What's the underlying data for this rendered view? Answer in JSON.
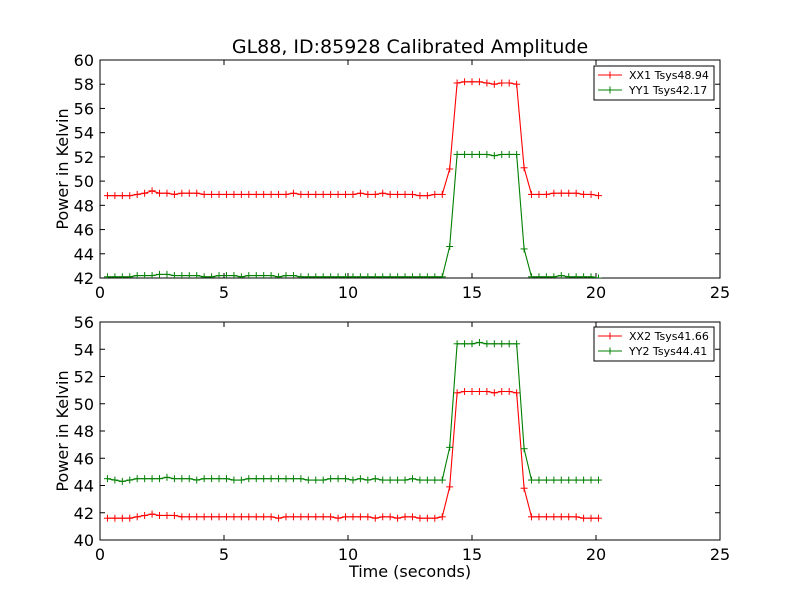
{
  "chart_data": [
    {
      "type": "line",
      "title": "GL88, ID:85928 Calibrated Amplitude",
      "xlabel": "",
      "ylabel": "Power in Kelvin",
      "xlim": [
        0,
        25
      ],
      "ylim": [
        42,
        60
      ],
      "xticks": [
        "0",
        "5",
        "10",
        "15",
        "20",
        "25"
      ],
      "yticks": [
        "42",
        "44",
        "46",
        "48",
        "50",
        "52",
        "54",
        "56",
        "58",
        "60"
      ],
      "legend_position": "top-right",
      "x": [
        0.3,
        0.6,
        0.9,
        1.2,
        1.5,
        1.8,
        2.1,
        2.4,
        2.7,
        3.0,
        3.3,
        3.6,
        3.9,
        4.2,
        4.5,
        4.8,
        5.1,
        5.4,
        5.7,
        6.0,
        6.3,
        6.6,
        6.9,
        7.2,
        7.5,
        7.8,
        8.1,
        8.4,
        8.7,
        9.0,
        9.3,
        9.6,
        9.9,
        10.2,
        10.5,
        10.8,
        11.1,
        11.4,
        11.7,
        12.0,
        12.3,
        12.6,
        12.9,
        13.2,
        13.5,
        13.8,
        14.1,
        14.4,
        14.7,
        15.0,
        15.3,
        15.6,
        15.9,
        16.2,
        16.5,
        16.8,
        17.1,
        17.4,
        17.7,
        18.0,
        18.3,
        18.6,
        18.9,
        19.2,
        19.5,
        19.8,
        20.1
      ],
      "series": [
        {
          "name": "XX1 Tsys48.94",
          "color": "#ff0000",
          "values": [
            48.8,
            48.8,
            48.8,
            48.8,
            48.9,
            49.0,
            49.2,
            49.0,
            49.0,
            48.9,
            49.0,
            49.0,
            49.0,
            48.9,
            48.9,
            48.9,
            48.9,
            48.9,
            48.9,
            48.9,
            48.9,
            48.9,
            48.9,
            48.9,
            48.9,
            49.0,
            48.9,
            48.9,
            48.9,
            48.9,
            48.9,
            48.9,
            48.9,
            48.9,
            49.0,
            48.9,
            48.9,
            49.0,
            48.9,
            48.9,
            48.9,
            48.9,
            48.8,
            48.8,
            48.9,
            48.9,
            51.0,
            58.1,
            58.2,
            58.2,
            58.2,
            58.1,
            58.0,
            58.1,
            58.1,
            58.0,
            51.1,
            48.9,
            48.9,
            48.9,
            49.0,
            49.0,
            49.0,
            49.0,
            48.9,
            48.9,
            48.8
          ]
        },
        {
          "name": "YY1 Tsys42.17",
          "color": "#008000",
          "values": [
            42.1,
            42.1,
            42.1,
            42.1,
            42.2,
            42.2,
            42.2,
            42.3,
            42.3,
            42.2,
            42.2,
            42.2,
            42.2,
            42.1,
            42.1,
            42.2,
            42.2,
            42.2,
            42.1,
            42.2,
            42.2,
            42.2,
            42.2,
            42.1,
            42.2,
            42.2,
            42.1,
            42.1,
            42.1,
            42.1,
            42.1,
            42.1,
            42.1,
            42.1,
            42.1,
            42.1,
            42.1,
            42.1,
            42.1,
            42.1,
            42.1,
            42.1,
            42.1,
            42.1,
            42.1,
            42.1,
            44.6,
            52.2,
            52.2,
            52.2,
            52.2,
            52.2,
            52.1,
            52.2,
            52.2,
            52.2,
            44.4,
            42.1,
            42.1,
            42.1,
            42.1,
            42.2,
            42.1,
            42.1,
            42.1,
            42.1,
            42.0
          ]
        }
      ]
    },
    {
      "type": "line",
      "title": "",
      "xlabel": "Time (seconds)",
      "ylabel": "Power in Kelvin",
      "xlim": [
        0,
        25
      ],
      "ylim": [
        40,
        56
      ],
      "xticks": [
        "0",
        "5",
        "10",
        "15",
        "20",
        "25"
      ],
      "yticks": [
        "40",
        "42",
        "44",
        "46",
        "48",
        "50",
        "52",
        "54",
        "56"
      ],
      "legend_position": "top-right",
      "x": [
        0.3,
        0.6,
        0.9,
        1.2,
        1.5,
        1.8,
        2.1,
        2.4,
        2.7,
        3.0,
        3.3,
        3.6,
        3.9,
        4.2,
        4.5,
        4.8,
        5.1,
        5.4,
        5.7,
        6.0,
        6.3,
        6.6,
        6.9,
        7.2,
        7.5,
        7.8,
        8.1,
        8.4,
        8.7,
        9.0,
        9.3,
        9.6,
        9.9,
        10.2,
        10.5,
        10.8,
        11.1,
        11.4,
        11.7,
        12.0,
        12.3,
        12.6,
        12.9,
        13.2,
        13.5,
        13.8,
        14.1,
        14.4,
        14.7,
        15.0,
        15.3,
        15.6,
        15.9,
        16.2,
        16.5,
        16.8,
        17.1,
        17.4,
        17.7,
        18.0,
        18.3,
        18.6,
        18.9,
        19.2,
        19.5,
        19.8,
        20.1
      ],
      "series": [
        {
          "name": "XX2 Tsys41.66",
          "color": "#ff0000",
          "values": [
            41.6,
            41.6,
            41.6,
            41.6,
            41.7,
            41.8,
            41.9,
            41.8,
            41.8,
            41.8,
            41.7,
            41.7,
            41.7,
            41.7,
            41.7,
            41.7,
            41.7,
            41.7,
            41.7,
            41.7,
            41.7,
            41.7,
            41.7,
            41.6,
            41.7,
            41.7,
            41.7,
            41.7,
            41.7,
            41.7,
            41.7,
            41.6,
            41.7,
            41.7,
            41.7,
            41.7,
            41.6,
            41.7,
            41.7,
            41.6,
            41.7,
            41.7,
            41.6,
            41.6,
            41.6,
            41.7,
            43.9,
            50.8,
            50.9,
            50.9,
            50.9,
            50.9,
            50.8,
            50.9,
            50.9,
            50.8,
            43.8,
            41.7,
            41.7,
            41.7,
            41.7,
            41.7,
            41.7,
            41.7,
            41.6,
            41.6,
            41.6
          ]
        },
        {
          "name": "YY2 Tsys44.41",
          "color": "#008000",
          "values": [
            44.5,
            44.4,
            44.3,
            44.4,
            44.5,
            44.5,
            44.5,
            44.5,
            44.6,
            44.5,
            44.5,
            44.5,
            44.4,
            44.5,
            44.5,
            44.5,
            44.5,
            44.4,
            44.4,
            44.5,
            44.5,
            44.5,
            44.5,
            44.5,
            44.5,
            44.5,
            44.5,
            44.4,
            44.4,
            44.4,
            44.5,
            44.5,
            44.5,
            44.4,
            44.5,
            44.4,
            44.5,
            44.4,
            44.4,
            44.4,
            44.4,
            44.5,
            44.4,
            44.4,
            44.4,
            44.4,
            46.8,
            54.4,
            54.4,
            54.4,
            54.5,
            54.4,
            54.4,
            54.4,
            54.4,
            54.4,
            46.7,
            44.4,
            44.4,
            44.4,
            44.4,
            44.4,
            44.4,
            44.4,
            44.4,
            44.4,
            44.4
          ]
        }
      ]
    }
  ]
}
